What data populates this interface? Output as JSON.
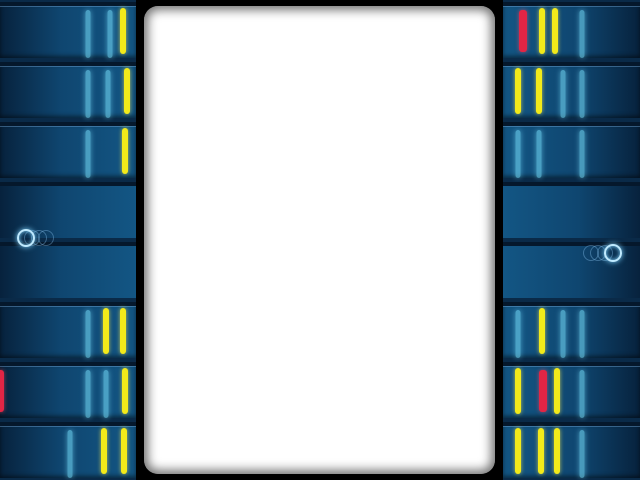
{
  "game": {
    "colors": {
      "ghost_bar": "#78e1ff",
      "yellow_bar": "#f2ea1a",
      "red_bar": "#e22545",
      "lane_bg": "#0f4670",
      "screen_bg": "#ffffff"
    },
    "left_lanes": [
      {
        "bars": [
          {
            "type": "ghost"
          },
          {
            "type": "ghost"
          },
          {
            "type": "yellow"
          }
        ]
      },
      {
        "bars": [
          {
            "type": "ghost"
          },
          {
            "type": "ghost"
          },
          {
            "type": "yellow"
          }
        ]
      },
      {
        "bars": [
          {
            "type": "ghost"
          },
          {
            "type": "yellow"
          }
        ]
      },
      {
        "bars": []
      },
      {
        "bars": []
      },
      {
        "bars": [
          {
            "type": "ghost"
          },
          {
            "type": "yellow"
          },
          {
            "type": "yellow"
          }
        ]
      },
      {
        "bars": [
          {
            "type": "ghost"
          },
          {
            "type": "ghost"
          },
          {
            "type": "yellow"
          },
          {
            "type": "red"
          }
        ]
      },
      {
        "bars": [
          {
            "type": "ghost"
          },
          {
            "type": "yellow"
          },
          {
            "type": "yellow"
          }
        ]
      }
    ],
    "right_lanes": [
      {
        "bars": [
          {
            "type": "red"
          },
          {
            "type": "yellow"
          },
          {
            "type": "yellow"
          },
          {
            "type": "ghost"
          }
        ]
      },
      {
        "bars": [
          {
            "type": "yellow"
          },
          {
            "type": "yellow"
          },
          {
            "type": "ghost"
          },
          {
            "type": "ghost"
          }
        ]
      },
      {
        "bars": [
          {
            "type": "ghost"
          },
          {
            "type": "ghost"
          },
          {
            "type": "ghost"
          }
        ]
      },
      {
        "bars": []
      },
      {
        "bars": []
      },
      {
        "bars": [
          {
            "type": "ghost"
          },
          {
            "type": "yellow"
          },
          {
            "type": "ghost"
          },
          {
            "type": "ghost"
          }
        ]
      },
      {
        "bars": [
          {
            "type": "yellow"
          },
          {
            "type": "red"
          },
          {
            "type": "yellow"
          },
          {
            "type": "ghost"
          }
        ]
      },
      {
        "bars": [
          {
            "type": "yellow"
          },
          {
            "type": "yellow"
          },
          {
            "type": "yellow"
          },
          {
            "type": "ghost"
          }
        ]
      }
    ],
    "left_shooter": {
      "icon": "ring-shooter-icon"
    },
    "right_shooter": {
      "icon": "ring-shooter-icon"
    }
  }
}
